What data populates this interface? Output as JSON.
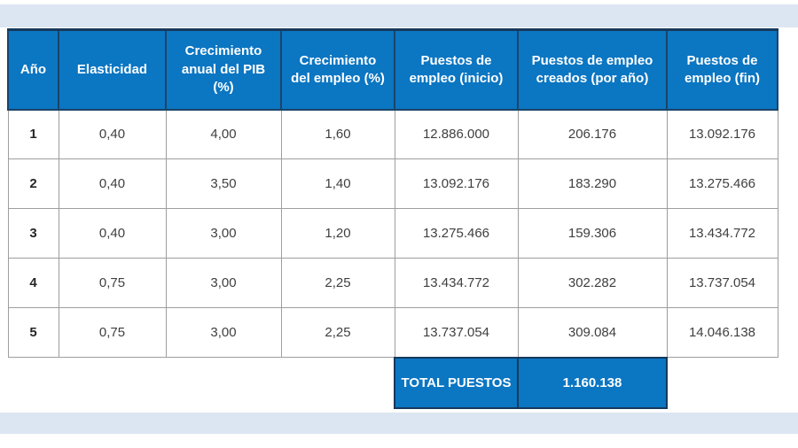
{
  "colors": {
    "header_blue": "#0b76c2",
    "header_border_navy": "#16395c",
    "grid_gray": "#9e9e9e",
    "band_light_blue": "#dce6f2",
    "data_text": "#3f3f3f"
  },
  "table": {
    "columns": [
      "Año",
      "Elasticidad",
      "Crecimiento anual del PIB (%)",
      "Crecimiento del empleo (%)",
      "Puestos de empleo (inicio)",
      "Puestos de empleo creados (por año)",
      "Puestos de empleo (fin)"
    ],
    "rows": [
      [
        "1",
        "0,40",
        "4,00",
        "1,60",
        "12.886.000",
        "206.176",
        "13.092.176"
      ],
      [
        "2",
        "0,40",
        "3,50",
        "1,40",
        "13.092.176",
        "183.290",
        "13.275.466"
      ],
      [
        "3",
        "0,40",
        "3,00",
        "1,20",
        "13.275.466",
        "159.306",
        "13.434.772"
      ],
      [
        "4",
        "0,75",
        "3,00",
        "2,25",
        "13.434.772",
        "302.282",
        "13.737.054"
      ],
      [
        "5",
        "0,75",
        "3,00",
        "2,25",
        "13.737.054",
        "309.084",
        "14.046.138"
      ]
    ],
    "total": {
      "label": "TOTAL PUESTOS",
      "value": "1.160.138"
    }
  }
}
